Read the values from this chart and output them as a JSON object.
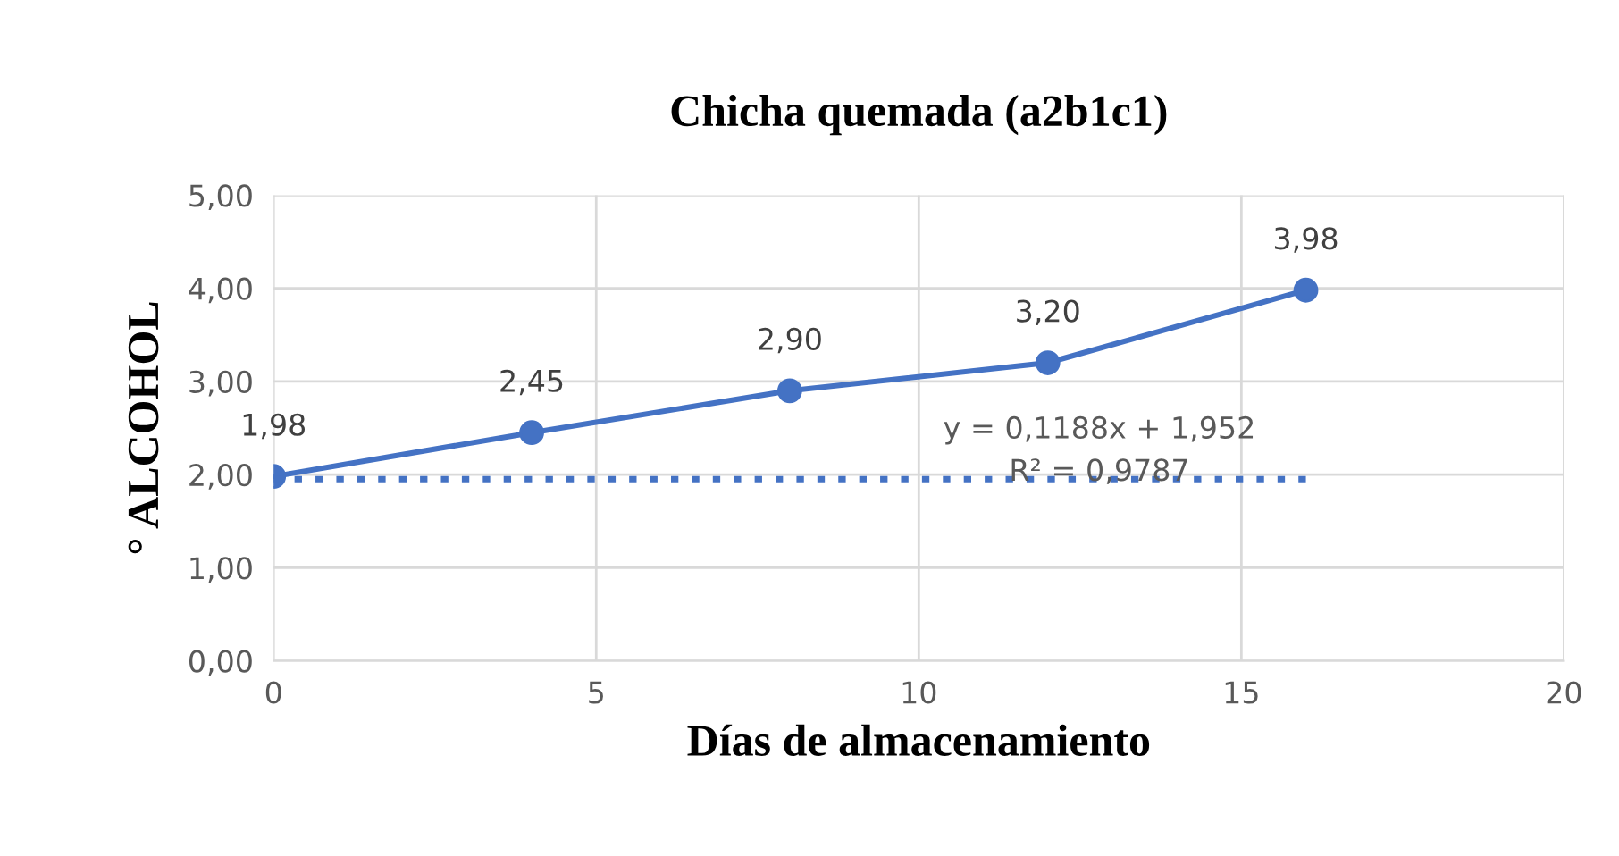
{
  "chart_data": {
    "type": "line",
    "title": "Chicha quemada (a2b1c1)",
    "xlabel": "Días de almacenamiento",
    "ylabel": "° ALCOHOL",
    "x": [
      0,
      4,
      8,
      12,
      16
    ],
    "series": [
      {
        "color": "#4472c4",
        "values": [
          1.98,
          2.45,
          2.9,
          3.2,
          3.98
        ],
        "value_labels": [
          "1,98",
          "2,45",
          "2,90",
          "3,20",
          "3,98"
        ],
        "marker": "circle",
        "line_style": "solid"
      },
      {
        "type": "line",
        "color": "#4472c4",
        "x": [
          0,
          16
        ],
        "values": [
          1.95,
          1.95
        ],
        "marker": "none",
        "line_style": "dotted"
      }
    ],
    "annotations": [
      "y = 0,1188x + 1,952\nR² = 0,9787"
    ],
    "xlim": [
      0,
      20
    ],
    "xticks": [
      0,
      5,
      10,
      15,
      20
    ],
    "ylim": [
      0,
      5
    ],
    "yticks": [
      {
        "value": 0,
        "label": "0,00"
      },
      {
        "value": 1,
        "label": "1,00"
      },
      {
        "value": 2,
        "label": "2,00"
      },
      {
        "value": 3,
        "label": "3,00"
      },
      {
        "value": 4,
        "label": "4,00"
      },
      {
        "value": 5,
        "label": "5,00"
      }
    ],
    "grid": true,
    "legend": false
  }
}
